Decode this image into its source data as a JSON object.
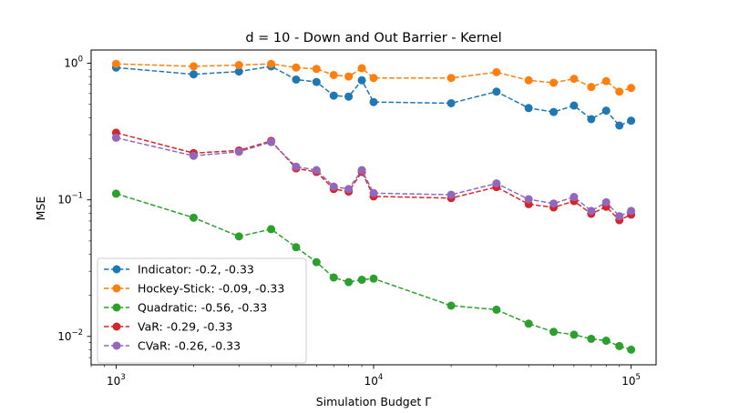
{
  "chart_data": {
    "type": "line",
    "title": "d = 10 - Down and Out Barrier - Kernel",
    "xlabel": "Simulation Budget Γ",
    "ylabel": "MSE",
    "xscale": "log",
    "yscale": "log",
    "xlim": [
      800,
      125000
    ],
    "ylim": [
      0.0062,
      1.25
    ],
    "x_ticks": [
      {
        "value": 1000,
        "base": "10",
        "exp": "3"
      },
      {
        "value": 10000,
        "base": "10",
        "exp": "4"
      },
      {
        "value": 100000,
        "base": "10",
        "exp": "5"
      }
    ],
    "y_ticks": [
      {
        "value": 0.01,
        "base": "10",
        "exp": "−2"
      },
      {
        "value": 0.1,
        "base": "10",
        "exp": "−1"
      },
      {
        "value": 1,
        "base": "10",
        "exp": "0"
      }
    ],
    "grid": false,
    "legend_position": "lower-left",
    "x": [
      1000,
      2000,
      3000,
      4000,
      5000,
      6000,
      7000,
      8000,
      9000,
      10000,
      20000,
      30000,
      40000,
      50000,
      60000,
      70000,
      80000,
      90000,
      100000
    ],
    "series": [
      {
        "name": "Indicator: -0.2, -0.33",
        "color": "#1f77b4",
        "values": [
          0.93,
          0.83,
          0.87,
          0.95,
          0.76,
          0.73,
          0.58,
          0.57,
          0.75,
          0.52,
          0.51,
          0.62,
          0.47,
          0.44,
          0.49,
          0.39,
          0.45,
          0.35,
          0.38
        ]
      },
      {
        "name": "Hockey-Stick: -0.09, -0.33",
        "color": "#ff7f0e",
        "values": [
          0.99,
          0.95,
          0.97,
          0.99,
          0.93,
          0.91,
          0.82,
          0.8,
          0.92,
          0.78,
          0.78,
          0.86,
          0.75,
          0.72,
          0.77,
          0.67,
          0.74,
          0.62,
          0.66
        ]
      },
      {
        "name": "Quadratic: -0.56, -0.33",
        "color": "#2ca02c",
        "values": [
          0.111,
          0.074,
          0.054,
          0.061,
          0.045,
          0.035,
          0.027,
          0.025,
          0.026,
          0.0265,
          0.0168,
          0.0157,
          0.0124,
          0.0108,
          0.0103,
          0.0096,
          0.0093,
          0.0085,
          0.008
        ]
      },
      {
        "name": "VaR: -0.29, -0.33",
        "color": "#d62728",
        "values": [
          0.31,
          0.22,
          0.23,
          0.27,
          0.17,
          0.16,
          0.12,
          0.115,
          0.16,
          0.106,
          0.103,
          0.124,
          0.093,
          0.088,
          0.098,
          0.079,
          0.089,
          0.071,
          0.078
        ]
      },
      {
        "name": "CVaR: -0.26, -0.33",
        "color": "#9467bd",
        "values": [
          0.285,
          0.21,
          0.225,
          0.265,
          0.175,
          0.165,
          0.125,
          0.12,
          0.165,
          0.112,
          0.109,
          0.132,
          0.101,
          0.094,
          0.105,
          0.083,
          0.096,
          0.076,
          0.083
        ]
      }
    ]
  }
}
